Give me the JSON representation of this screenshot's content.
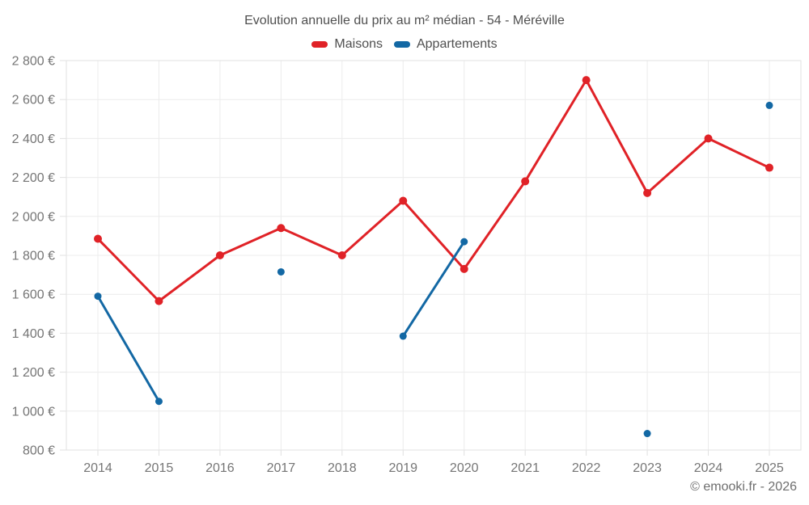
{
  "header": {
    "title": "Evolution annuelle du prix au m² médian - 54 - Méréville"
  },
  "legend": {
    "items": [
      {
        "label": "Maisons",
        "color": "#e02227"
      },
      {
        "label": "Appartements",
        "color": "#1368a4"
      }
    ]
  },
  "footer": {
    "copyright": "© emooki.fr - 2026"
  },
  "chart_data": {
    "type": "line",
    "title": "Evolution annuelle du prix au m² médian - 54 - Méréville",
    "categories": [
      "2014",
      "2015",
      "2016",
      "2017",
      "2018",
      "2019",
      "2020",
      "2021",
      "2022",
      "2023",
      "2024",
      "2025"
    ],
    "series": [
      {
        "name": "Maisons",
        "color": "#e02227",
        "values": [
          1885,
          1565,
          1800,
          1940,
          1800,
          2080,
          1730,
          2180,
          2700,
          2120,
          2400,
          2250
        ]
      },
      {
        "name": "Appartements",
        "color": "#1368a4",
        "values": [
          1590,
          1050,
          null,
          1715,
          null,
          1385,
          1870,
          null,
          null,
          885,
          null,
          2570
        ]
      }
    ],
    "xlabel": "",
    "ylabel": "",
    "ylim": [
      800,
      2800
    ],
    "ytick_step": 200,
    "ytick_labels": [
      "800 €",
      "1 000 €",
      "1 200 €",
      "1 400 €",
      "1 600 €",
      "1 800 €",
      "2 000 €",
      "2 200 €",
      "2 400 €",
      "2 600 €",
      "2 800 €"
    ],
    "grid": true,
    "legend_position": "top",
    "colors": {
      "grid": "#ececec",
      "border": "#e2e2e2",
      "tick": "#e0e0e0",
      "tick_text": "#757575"
    }
  }
}
